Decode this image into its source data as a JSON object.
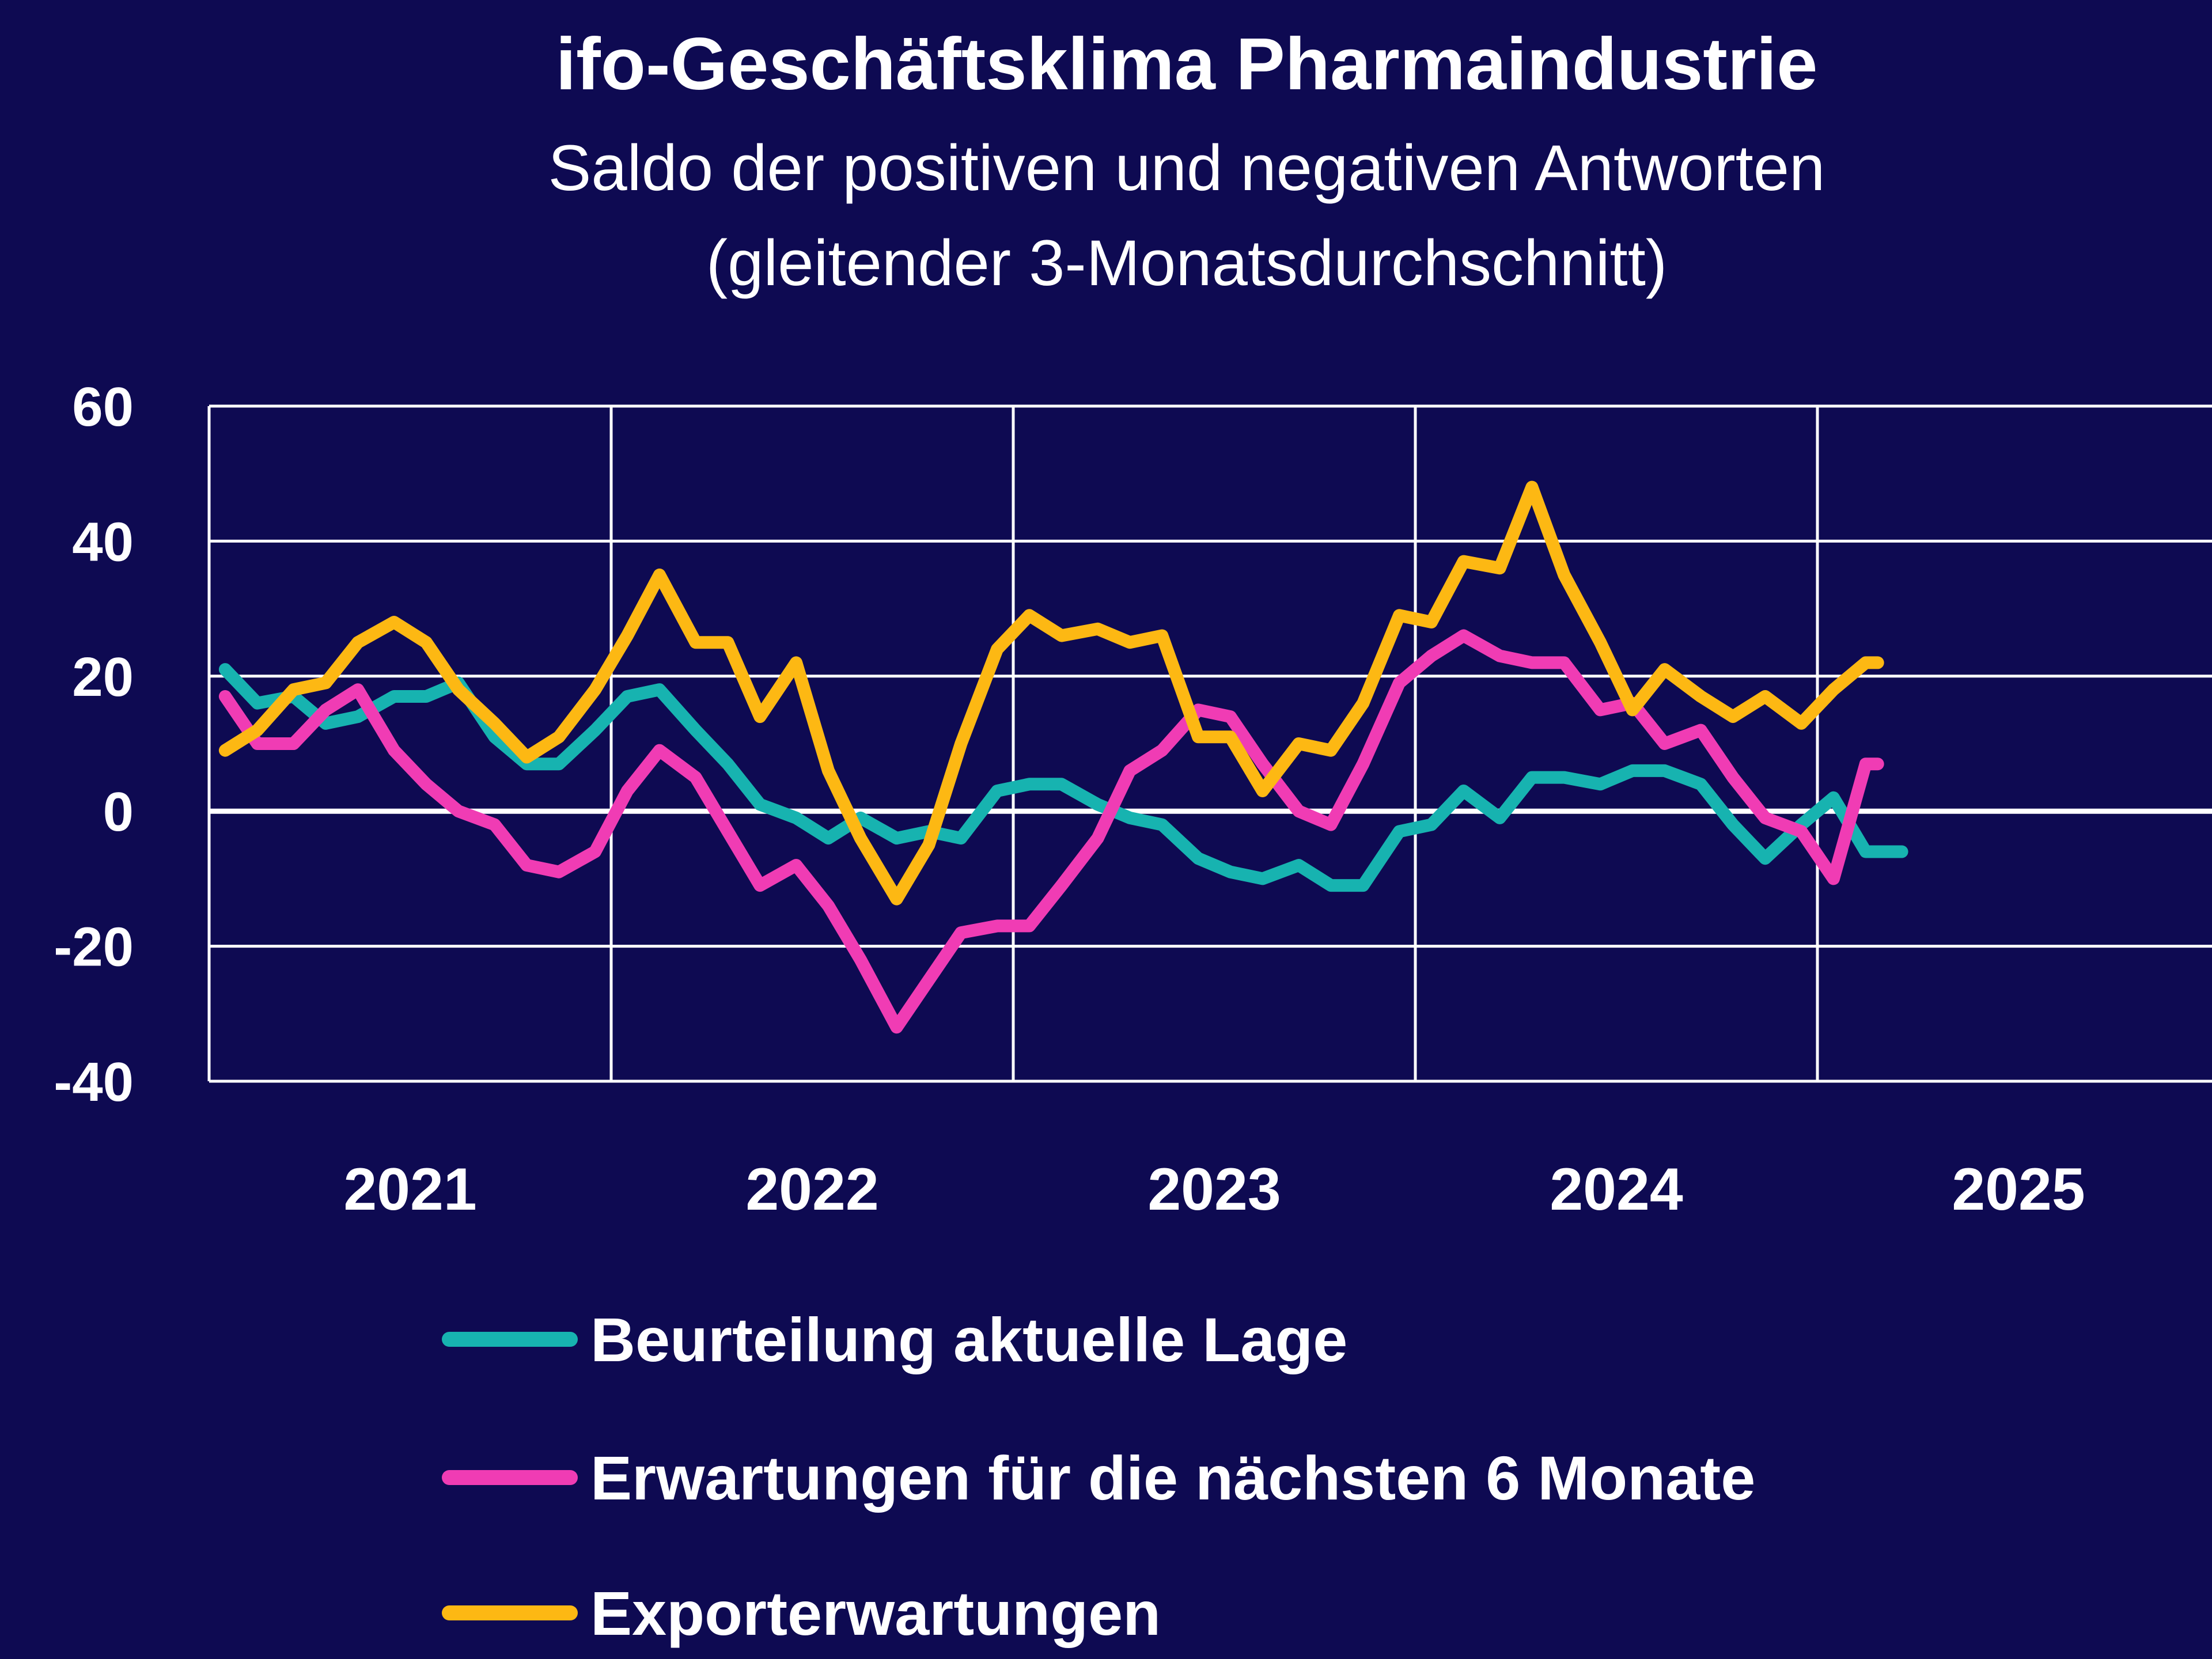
{
  "chart_data": {
    "type": "line",
    "title": "ifo-Geschäftsklima Pharmaindustrie",
    "subtitle": [
      "Saldo der positiven und negativen Antworten",
      "(gleitender 3-Monatsdurchschnitt)"
    ],
    "xlabel": "",
    "ylabel": "",
    "ylim": [
      -40,
      60
    ],
    "yticks": [
      60,
      40,
      20,
      0,
      -20,
      -40
    ],
    "xlim": [
      2020.5,
      2025.5
    ],
    "xticks": [
      2021,
      2022,
      2023,
      2024,
      2025
    ],
    "xtick_labels": [
      "2021",
      "2022",
      "2023",
      "2024",
      "2025"
    ],
    "grid": true,
    "legend": "bottom",
    "series": [
      {
        "name": "Beurteilung aktuelle Lage",
        "color": "#17b3b0",
        "x": [
          2020.54,
          2020.62,
          2020.71,
          2020.79,
          2020.87,
          2020.96,
          2021.04,
          2021.12,
          2021.21,
          2021.29,
          2021.37,
          2021.46,
          2021.54,
          2021.62,
          2021.71,
          2021.79,
          2021.87,
          2021.96,
          2022.04,
          2022.12,
          2022.21,
          2022.29,
          2022.37,
          2022.46,
          2022.54,
          2022.62,
          2022.71,
          2022.79,
          2022.87,
          2022.96,
          2023.04,
          2023.12,
          2023.21,
          2023.29,
          2023.37,
          2023.46,
          2023.54,
          2023.62,
          2023.71,
          2023.79,
          2023.87,
          2023.96,
          2024.04,
          2024.12,
          2024.21,
          2024.29,
          2024.37,
          2024.46,
          2024.54,
          2024.62,
          2024.71
        ],
        "values": [
          21,
          16,
          17,
          13,
          14,
          17,
          17,
          19,
          11,
          7,
          7,
          12,
          17,
          18,
          12,
          7,
          1,
          -1,
          -4,
          -1,
          -4,
          -3,
          -4,
          3,
          4,
          4,
          1,
          -1,
          -2,
          -7,
          -9,
          -10,
          -8,
          -11,
          -11,
          -3,
          -2,
          3,
          -1,
          5,
          5,
          4,
          6,
          6,
          4,
          -2,
          -7,
          -2,
          2,
          -6,
          -6
        ]
      },
      {
        "name": "Erwartungen für die nächsten 6 Monate",
        "color": "#f03cb4",
        "x": [
          2020.54,
          2020.62,
          2020.71,
          2020.79,
          2020.87,
          2020.96,
          2021.04,
          2021.12,
          2021.21,
          2021.29,
          2021.37,
          2021.46,
          2021.54,
          2021.62,
          2021.71,
          2021.79,
          2021.87,
          2021.96,
          2022.04,
          2022.12,
          2022.21,
          2022.29,
          2022.37,
          2022.46,
          2022.54,
          2022.62,
          2022.71,
          2022.79,
          2022.87,
          2022.96,
          2023.04,
          2023.12,
          2023.21,
          2023.29,
          2023.37,
          2023.46,
          2023.54,
          2023.62,
          2023.71,
          2023.79,
          2023.87,
          2023.96,
          2024.04,
          2024.12,
          2024.21,
          2024.29,
          2024.37,
          2024.46,
          2024.54,
          2024.62,
          2024.65
        ],
        "values": [
          17,
          10,
          10,
          15,
          18,
          9,
          4,
          0,
          -2,
          -8,
          -9,
          -6,
          3,
          9,
          5,
          -3,
          -11,
          -8,
          -14,
          -22,
          -32,
          -25,
          -18,
          -17,
          -17,
          -11,
          -4,
          6,
          9,
          15,
          14,
          7,
          0,
          -2,
          7,
          19,
          23,
          26,
          23,
          22,
          22,
          15,
          16,
          10,
          12,
          5,
          -1,
          -3,
          -10,
          7,
          7
        ]
      },
      {
        "name": "Exporterwartungen",
        "color": "#fdb813",
        "x": [
          2020.54,
          2020.62,
          2020.71,
          2020.79,
          2020.87,
          2020.96,
          2021.04,
          2021.12,
          2021.21,
          2021.29,
          2021.37,
          2021.46,
          2021.54,
          2021.62,
          2021.71,
          2021.79,
          2021.87,
          2021.96,
          2022.04,
          2022.12,
          2022.21,
          2022.29,
          2022.37,
          2022.46,
          2022.54,
          2022.62,
          2022.71,
          2022.79,
          2022.87,
          2022.96,
          2023.04,
          2023.12,
          2023.21,
          2023.29,
          2023.37,
          2023.46,
          2023.54,
          2023.62,
          2023.71,
          2023.79,
          2023.87,
          2023.96,
          2024.04,
          2024.12,
          2024.21,
          2024.29,
          2024.37,
          2024.46,
          2024.54,
          2024.62,
          2024.65
        ],
        "values": [
          9,
          12,
          18,
          19,
          25,
          28,
          25,
          18,
          13,
          8,
          11,
          18,
          26,
          35,
          25,
          25,
          14,
          22,
          6,
          -4,
          -13,
          -5,
          10,
          24,
          29,
          26,
          27,
          25,
          26,
          11,
          11,
          3,
          10,
          9,
          16,
          29,
          28,
          37,
          36,
          48,
          35,
          25,
          15,
          21,
          17,
          14,
          17,
          13,
          18,
          22,
          22
        ]
      }
    ]
  }
}
